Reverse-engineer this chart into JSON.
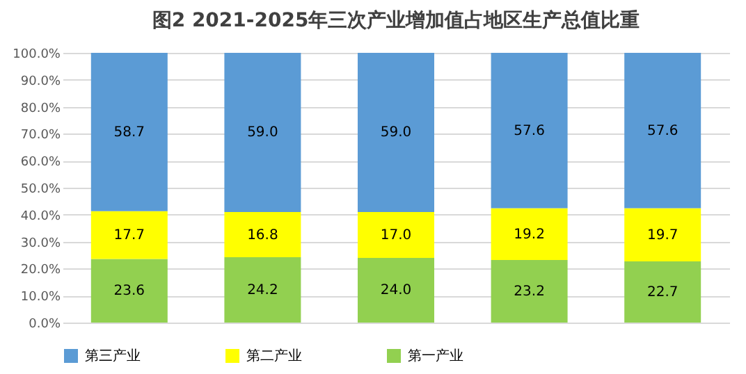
{
  "chart_data": {
    "type": "bar",
    "title": "图2 2021-2025年三次产业增加值占地区生产总值比重",
    "categories": [
      null,
      null,
      null,
      null,
      null
    ],
    "stacked": true,
    "series": [
      {
        "name": "第一产业",
        "color": "#92d050",
        "values": [
          23.6,
          24.2,
          24.0,
          23.2,
          22.7
        ],
        "value_labels": [
          "23.6",
          "24.2",
          "24.0",
          "23.2",
          "22.7"
        ]
      },
      {
        "name": "第二产业",
        "color": "#ffff00",
        "values": [
          17.7,
          16.8,
          17.0,
          19.2,
          19.7
        ],
        "value_labels": [
          "17.7",
          "16.8",
          "17.0",
          "19.2",
          "19.7"
        ]
      },
      {
        "name": "第三产业",
        "color": "#5b9bd5",
        "values": [
          58.7,
          59.0,
          59.0,
          57.6,
          57.6
        ],
        "value_labels": [
          "58.7",
          "59.0",
          "59.0",
          "57.6",
          "57.6"
        ]
      }
    ],
    "ylim": [
      0,
      100
    ],
    "yticks": [
      {
        "value": 0,
        "label": "0.0%"
      },
      {
        "value": 10,
        "label": "10.0%"
      },
      {
        "value": 20,
        "label": "20.0%"
      },
      {
        "value": 30,
        "label": "30.0%"
      },
      {
        "value": 40,
        "label": "40.0%"
      },
      {
        "value": 50,
        "label": "50.0%"
      },
      {
        "value": 60,
        "label": "60.0%"
      },
      {
        "value": 70,
        "label": "70.0%"
      },
      {
        "value": 80,
        "label": "80.0%"
      },
      {
        "value": 90,
        "label": "90.0%"
      },
      {
        "value": 100,
        "label": "100.0%"
      }
    ],
    "grid": "y",
    "legend": "bottom",
    "data_labels": true,
    "tick_labels": "y"
  }
}
